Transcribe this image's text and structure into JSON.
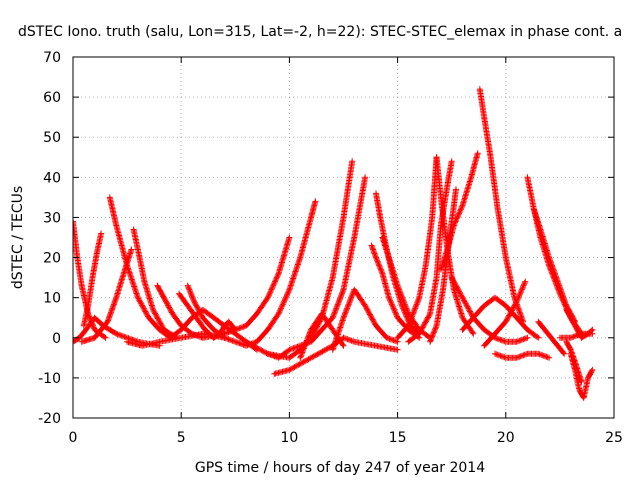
{
  "chart_data": {
    "type": "scatter",
    "title": "dSTEC Iono. truth (salu, Lon=315, Lat=-2, h=22): STEC-STEC_elemax in phase cont. a",
    "xlabel": "GPS time / hours of day 247 of year 2014",
    "ylabel": "dSTEC  / TECUs",
    "xlim": [
      0,
      25
    ],
    "ylim": [
      -20,
      70
    ],
    "x_ticks": [
      0,
      5,
      10,
      15,
      20,
      25
    ],
    "y_ticks": [
      -20,
      -10,
      0,
      10,
      20,
      30,
      40,
      50,
      60,
      70
    ],
    "grid": true,
    "legend": "none",
    "color": "#ff0000",
    "series": [
      {
        "x": [
          0.0,
          0.2,
          0.4,
          0.7,
          1.0,
          1.5
        ],
        "y": [
          29,
          20,
          13,
          6,
          2,
          0
        ]
      },
      {
        "x": [
          0.0,
          0.3,
          0.6,
          1.0,
          1.4,
          2.0,
          3.0,
          4.0
        ],
        "y": [
          -1,
          0,
          2,
          5,
          3,
          1,
          -1,
          -2
        ]
      },
      {
        "x": [
          0.5,
          0.7,
          0.9,
          1.1,
          1.3
        ],
        "y": [
          3,
          8,
          15,
          21,
          26
        ]
      },
      {
        "x": [
          0.4,
          1.0,
          1.6,
          2.0,
          2.4,
          2.7
        ],
        "y": [
          -1,
          0,
          4,
          10,
          17,
          22
        ]
      },
      {
        "x": [
          1.7,
          2.0,
          2.5,
          3.0,
          3.5,
          4.0,
          4.5
        ],
        "y": [
          35,
          28,
          18,
          10,
          5,
          2,
          0
        ]
      },
      {
        "x": [
          2.8,
          3.0,
          3.3,
          3.7,
          4.2,
          4.8
        ],
        "y": [
          27,
          22,
          14,
          7,
          2,
          0
        ]
      },
      {
        "x": [
          2.5,
          3.2,
          4.0,
          5.0,
          6.0,
          7.0
        ],
        "y": [
          -1,
          -2,
          -1,
          0,
          1,
          0
        ]
      },
      {
        "x": [
          3.9,
          4.2,
          4.6,
          5.0,
          5.5,
          6.0
        ],
        "y": [
          13,
          10,
          6,
          3,
          1,
          0
        ]
      },
      {
        "x": [
          4.9,
          5.3,
          5.7,
          6.1,
          6.5
        ],
        "y": [
          11,
          8,
          5,
          2,
          0
        ]
      },
      {
        "x": [
          5.3,
          5.6,
          6.0,
          6.5,
          7.0
        ],
        "y": [
          13,
          9,
          5,
          2,
          0
        ]
      },
      {
        "x": [
          4.5,
          5.0,
          5.5,
          6.0,
          6.5,
          7.0,
          7.5,
          8.0,
          8.5
        ],
        "y": [
          0,
          2,
          5,
          7,
          5,
          3,
          1,
          -1,
          -3
        ]
      },
      {
        "x": [
          6.5,
          6.8,
          7.0,
          7.2,
          7.5
        ],
        "y": [
          0,
          1,
          3,
          4,
          2
        ]
      },
      {
        "x": [
          6.0,
          7.0,
          8.0,
          8.5,
          9.0,
          9.5,
          10.0
        ],
        "y": [
          0,
          1,
          3,
          6,
          10,
          16,
          25
        ]
      },
      {
        "x": [
          7.0,
          7.5,
          8.0,
          8.5,
          9.0,
          9.5,
          10.0,
          10.5,
          11.0,
          11.2
        ],
        "y": [
          0,
          -1,
          -2,
          -1,
          2,
          6,
          12,
          20,
          30,
          34
        ]
      },
      {
        "x": [
          8.0,
          9.0,
          10.0,
          10.5,
          11.0,
          11.5,
          12.0,
          12.5,
          12.9
        ],
        "y": [
          -1,
          -4,
          -5,
          -3,
          0,
          5,
          15,
          30,
          44
        ]
      },
      {
        "x": [
          9.0,
          9.5,
          10.0,
          11.0,
          12.0,
          12.5,
          13.0,
          13.5
        ],
        "y": [
          -4,
          -5,
          -3,
          -1,
          5,
          12,
          25,
          40
        ]
      },
      {
        "x": [
          9.3,
          10.0,
          11.0,
          12.0,
          12.5,
          13.0,
          14.0,
          15.0
        ],
        "y": [
          -9,
          -8,
          -5,
          -2,
          0,
          -1,
          -2,
          -3
        ]
      },
      {
        "x": [
          10.5,
          11.0,
          11.5,
          12.0,
          12.5
        ],
        "y": [
          -5,
          2,
          6,
          2,
          -2
        ]
      },
      {
        "x": [
          12.0,
          12.5,
          13.0,
          13.5,
          14.0,
          14.5,
          15.0
        ],
        "y": [
          -3,
          5,
          12,
          8,
          3,
          0,
          -1
        ]
      },
      {
        "x": [
          13.8,
          14.0,
          14.3,
          14.6,
          15.0,
          15.5,
          16.0
        ],
        "y": [
          23,
          20,
          16,
          10,
          5,
          2,
          0
        ]
      },
      {
        "x": [
          14.0,
          14.2,
          14.5,
          14.8,
          15.2,
          15.6,
          16.0
        ],
        "y": [
          36,
          30,
          22,
          15,
          8,
          3,
          1
        ]
      },
      {
        "x": [
          14.3,
          14.6,
          15.0,
          15.5,
          16.0,
          16.5
        ],
        "y": [
          25,
          20,
          13,
          6,
          2,
          0
        ]
      },
      {
        "x": [
          15.0,
          15.5,
          16.0,
          16.3,
          16.6,
          16.8
        ],
        "y": [
          0,
          3,
          10,
          18,
          30,
          45
        ]
      },
      {
        "x": [
          15.5,
          16.0,
          16.5,
          16.8,
          17.0,
          17.3,
          17.5
        ],
        "y": [
          -1,
          1,
          6,
          15,
          28,
          38,
          44
        ]
      },
      {
        "x": [
          16.8,
          17.0,
          17.3,
          17.6,
          18.0,
          18.5
        ],
        "y": [
          45,
          35,
          22,
          12,
          5,
          1
        ]
      },
      {
        "x": [
          16.5,
          16.8,
          17.1,
          17.4,
          17.7
        ],
        "y": [
          -1,
          3,
          12,
          25,
          37
        ]
      },
      {
        "x": [
          17.0,
          17.3,
          17.6,
          18.0,
          18.4,
          18.7
        ],
        "y": [
          17,
          22,
          28,
          33,
          40,
          46
        ]
      },
      {
        "x": [
          17.5,
          18.0,
          18.5,
          19.0,
          19.5,
          20.0,
          20.5,
          21.0
        ],
        "y": [
          15,
          10,
          5,
          2,
          0,
          -1,
          -1,
          0
        ]
      },
      {
        "x": [
          18.8,
          19.0,
          19.3,
          19.6,
          20.0,
          20.4,
          20.8
        ],
        "y": [
          62,
          55,
          45,
          33,
          20,
          10,
          4
        ]
      },
      {
        "x": [
          18.0,
          18.5,
          19.0,
          19.5,
          20.0,
          20.5,
          21.0,
          21.5
        ],
        "y": [
          2,
          5,
          8,
          10,
          8,
          5,
          2,
          0
        ]
      },
      {
        "x": [
          19.0,
          19.5,
          20.0,
          20.5,
          20.9
        ],
        "y": [
          -2,
          1,
          4,
          9,
          14
        ]
      },
      {
        "x": [
          19.5,
          20.0,
          20.5,
          21.0,
          21.5,
          22.0
        ],
        "y": [
          -4,
          -5,
          -5,
          -4,
          -4,
          -5
        ]
      },
      {
        "x": [
          21.0,
          21.3,
          21.6,
          22.0,
          22.5,
          23.0,
          23.5
        ],
        "y": [
          40,
          32,
          25,
          18,
          11,
          5,
          1
        ]
      },
      {
        "x": [
          21.3,
          21.6,
          22.0,
          22.4,
          22.8,
          23.2
        ],
        "y": [
          32,
          27,
          20,
          14,
          8,
          4
        ]
      },
      {
        "x": [
          21.5,
          21.8,
          22.1,
          22.4,
          22.7
        ],
        "y": [
          4,
          2,
          0,
          -2,
          -4
        ]
      },
      {
        "x": [
          23.0,
          23.2,
          23.4,
          23.6,
          23.8,
          24.0
        ],
        "y": [
          -4,
          -8,
          -13,
          -15,
          -10,
          -8
        ]
      },
      {
        "x": [
          22.8,
          23.0,
          23.2,
          23.5
        ],
        "y": [
          -1,
          -3,
          -6,
          -11
        ]
      },
      {
        "x": [
          22.8,
          23.0,
          23.3,
          23.5,
          23.8,
          24.0
        ],
        "y": [
          7,
          5,
          2,
          0,
          1,
          2
        ]
      },
      {
        "x": [
          22.5,
          23.0,
          23.5,
          24.0
        ],
        "y": [
          0,
          0,
          1,
          1
        ]
      }
    ]
  }
}
